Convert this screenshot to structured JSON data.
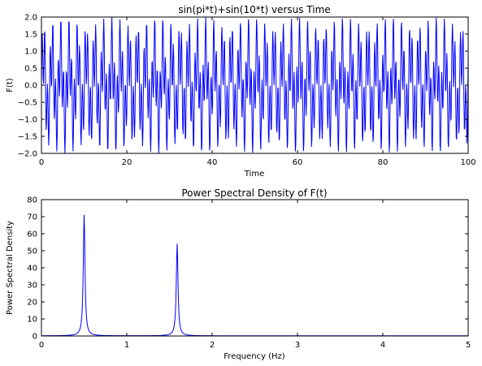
{
  "chart_data": [
    {
      "type": "line",
      "title": "sin(pi*t)+sin(10*t) versus Time",
      "xlabel": "Time",
      "ylabel": "F(t)",
      "xlim": [
        0,
        100
      ],
      "ylim": [
        -2.0,
        2.0
      ],
      "xticks": [
        "0",
        "20",
        "40",
        "60",
        "80",
        "100"
      ],
      "yticks": [
        "2.0",
        "1.5",
        "1.0",
        "0.5",
        "0.0",
        "−0.5",
        "−1.0",
        "−1.5",
        "−2.0"
      ],
      "grid": false,
      "series": [
        {
          "function": "sin(pi*t)+sin(10*t)",
          "t_start": 0,
          "t_end": 100,
          "samples": 1001,
          "color": "#0000ff"
        }
      ]
    },
    {
      "type": "line",
      "title": "Power Spectral Density of F(t)",
      "xlabel": "Frequency (Hz)",
      "ylabel": "Power Spectral Density",
      "xlim": [
        0,
        5
      ],
      "ylim": [
        0,
        80
      ],
      "xticks": [
        "0",
        "1",
        "2",
        "3",
        "4",
        "5"
      ],
      "yticks": [
        "80",
        "70",
        "60",
        "50",
        "40",
        "30",
        "20",
        "10",
        "0"
      ],
      "grid": false,
      "peaks": [
        {
          "frequency": 0.5,
          "value": 71
        },
        {
          "frequency": 1.59,
          "value": 54
        }
      ],
      "series": [
        {
          "color": "#0000ff"
        }
      ]
    }
  ]
}
